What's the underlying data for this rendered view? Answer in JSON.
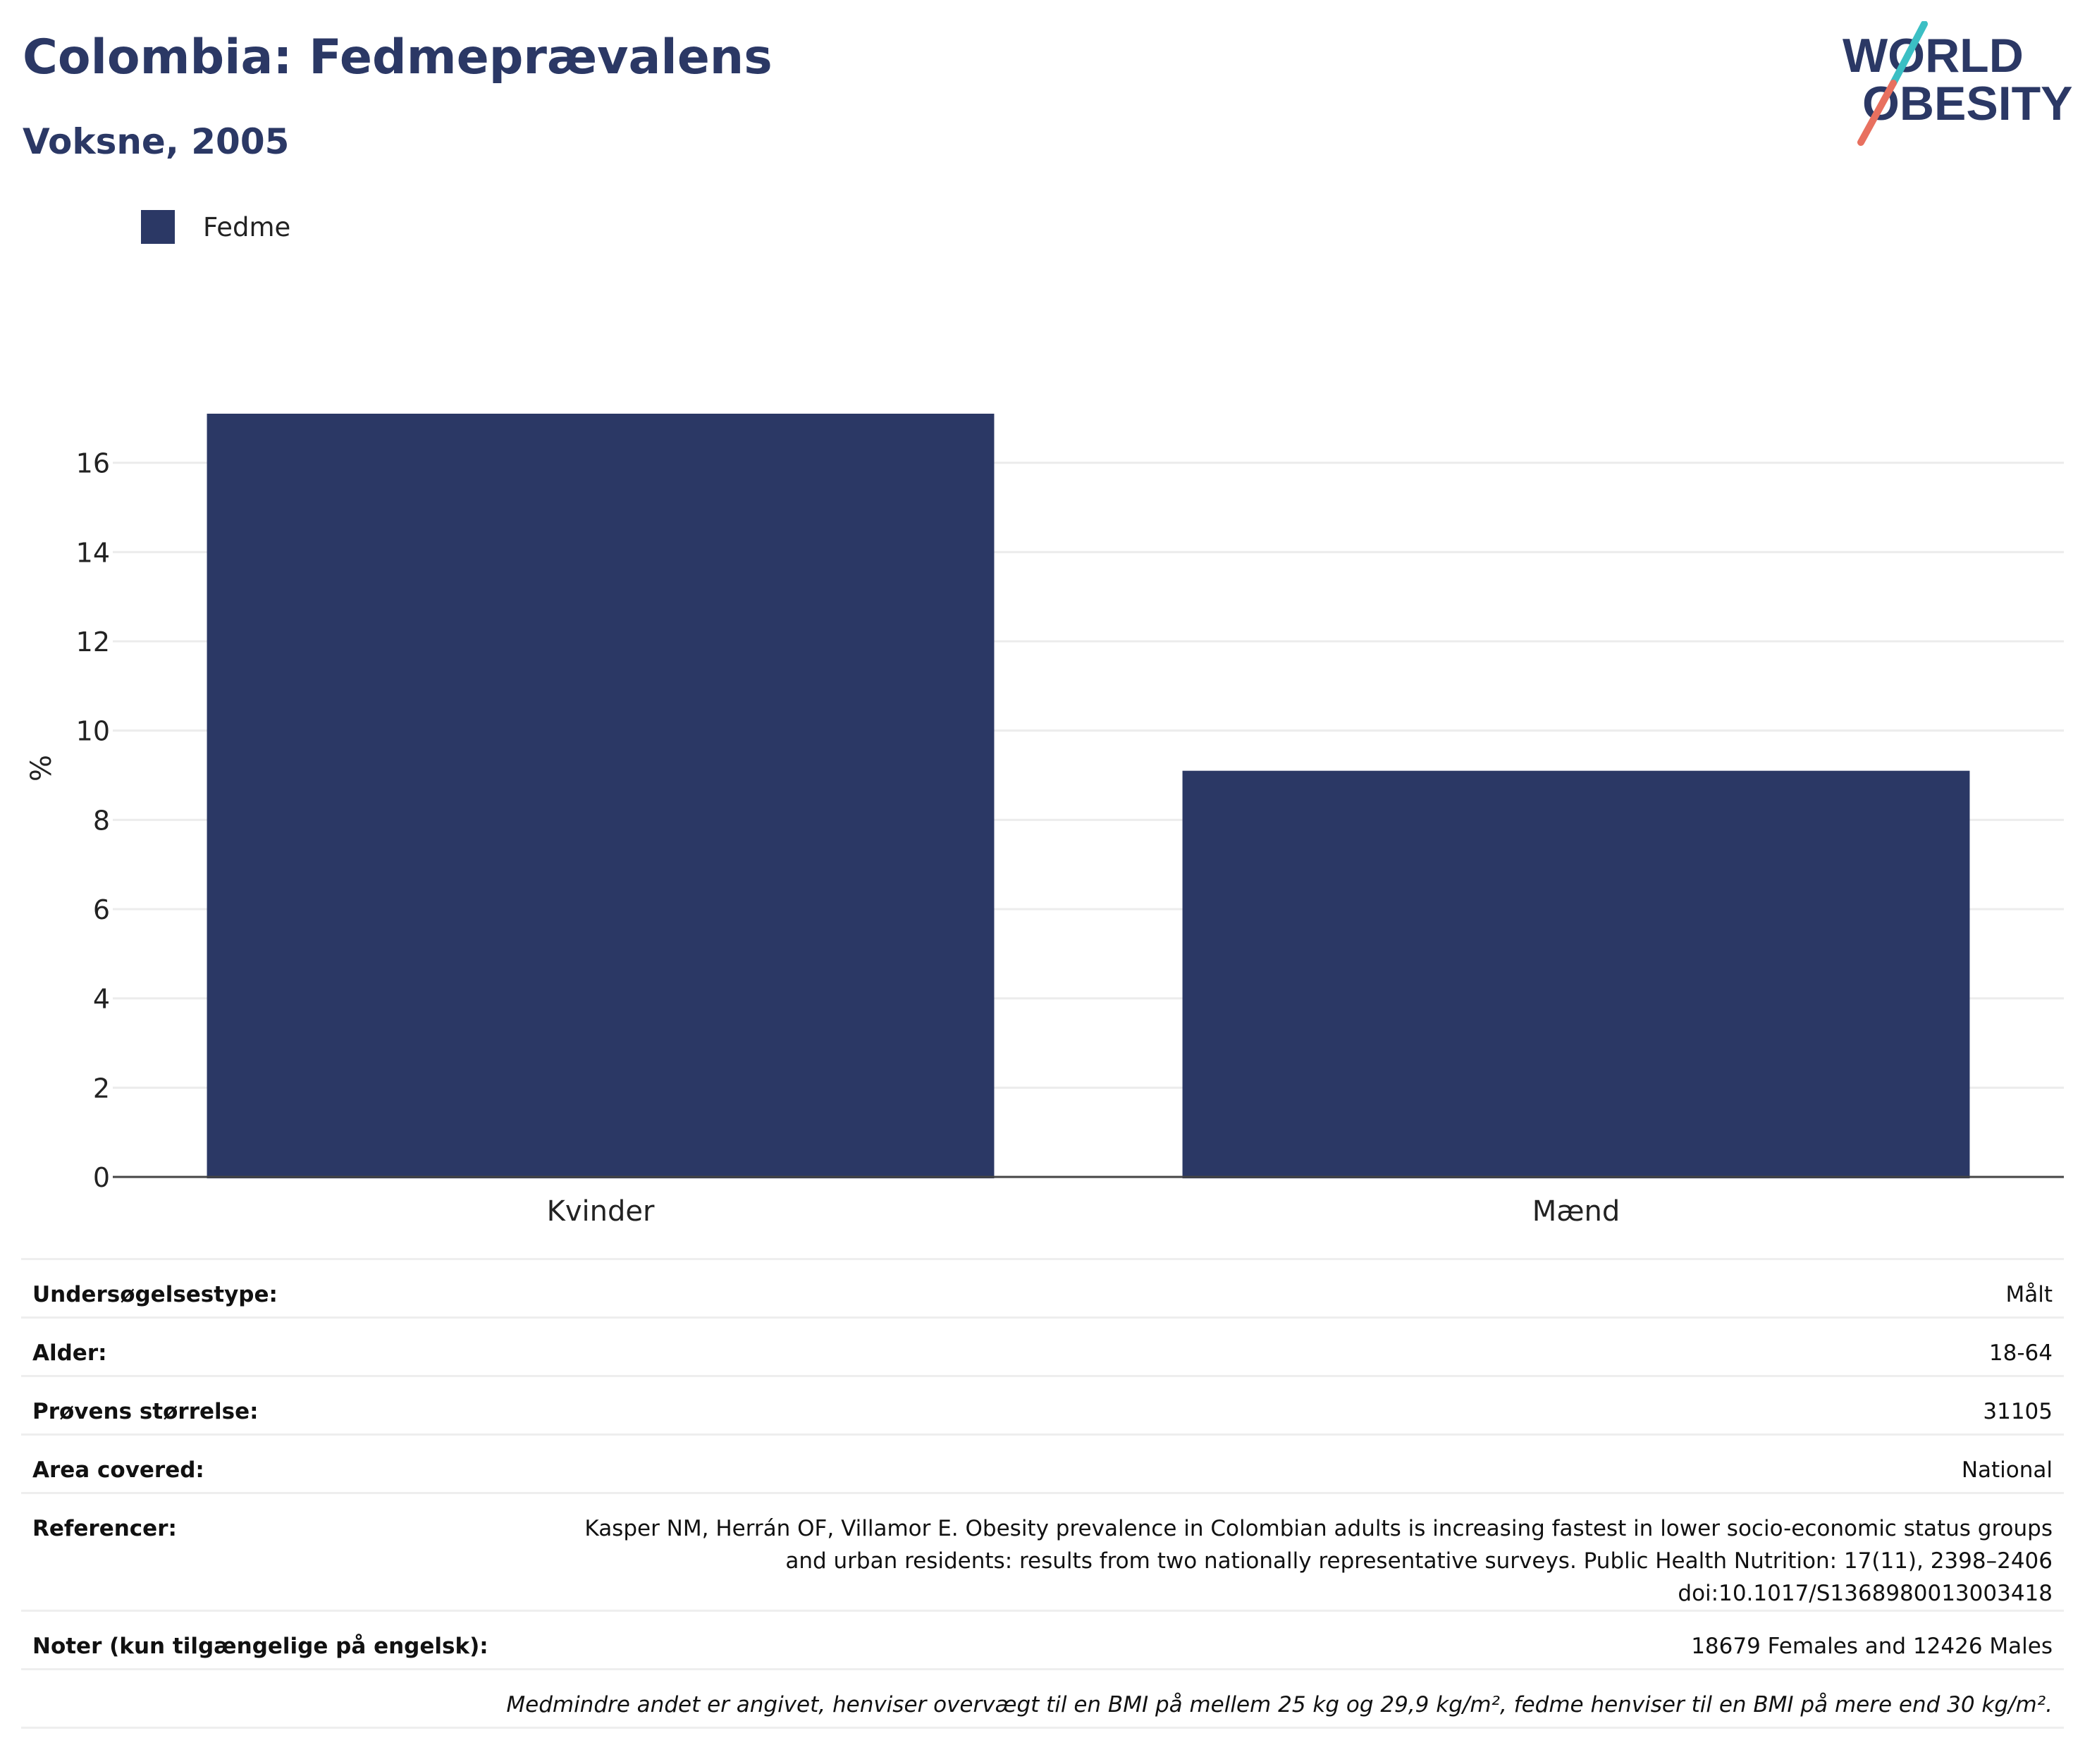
{
  "header": {
    "title": "Colombia: Fedmeprævalens",
    "subtitle": "Voksne, 2005"
  },
  "logo": {
    "text_line1": "WORLD",
    "text_line2": "OBESITY",
    "colors": {
      "text": "#2b3865",
      "slash_top": "#3bbfc4",
      "slash_bottom": "#e8705f"
    }
  },
  "legend": {
    "items": [
      {
        "label": "Fedme",
        "color": "#2b3865"
      }
    ]
  },
  "chart_data": {
    "type": "bar",
    "categories": [
      "Kvinder",
      "Mænd"
    ],
    "series": [
      {
        "name": "Fedme",
        "values": [
          17.1,
          9.1
        ],
        "color": "#2b3865"
      }
    ],
    "title": "",
    "xlabel": "",
    "ylabel": "%",
    "ylim": [
      0,
      18
    ],
    "yticks": [
      0,
      2,
      4,
      6,
      8,
      10,
      12,
      14,
      16
    ],
    "grid": true
  },
  "info": {
    "rows": [
      {
        "key": "Undersøgelsestype:",
        "value": "Målt"
      },
      {
        "key": "Alder:",
        "value": "18-64"
      },
      {
        "key": "Prøvens størrelse:",
        "value": "31105"
      },
      {
        "key": "Area covered:",
        "value": "National"
      },
      {
        "key": "Referencer:",
        "lines": [
          "Kasper NM, Herrán OF, Villamor E. Obesity prevalence in Colombian adults is increasing fastest in lower socio-economic status groups",
          "and urban residents: results from two nationally representative surveys. Public Health Nutrition: 17(11), 2398–2406",
          "doi:10.1017/S1368980013003418"
        ]
      },
      {
        "key": "Noter (kun tilgængelige på engelsk):",
        "value": "18679 Females and 12426 Males"
      }
    ],
    "footnote": "Medmindre andet er angivet, henviser overvægt til en BMI på mellem 25 kg og 29,9 kg/m², fedme henviser til en BMI på mere end 30 kg/m²."
  }
}
